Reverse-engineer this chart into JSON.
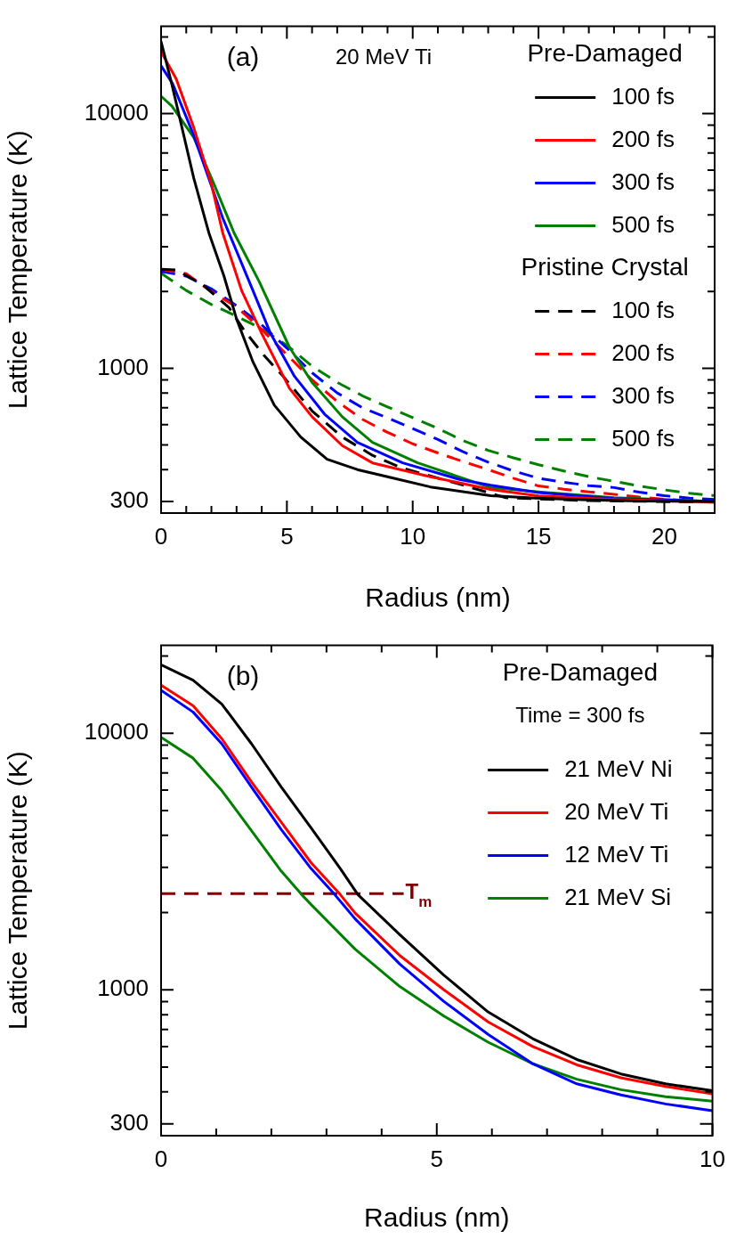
{
  "chart_data": [
    {
      "type": "line",
      "subtitle": "20 MeV Ti",
      "xlabel": "Radius (nm)",
      "ylabel": "Lattice Temperature (K)",
      "legend_title": "Pre-Damaged",
      "legend": "top right",
      "grid": false,
      "log": "y",
      "annotations": [
        "(a)",
        "Pristine Crystal"
      ],
      "xlim": [
        0,
        22
      ],
      "xticks": [
        0,
        {
          "value": 1,
          "label": null
        },
        {
          "value": 2,
          "label": null
        },
        {
          "value": 3,
          "label": null
        },
        {
          "value": 4,
          "label": null
        },
        5,
        {
          "value": 6,
          "label": null
        },
        {
          "value": 7,
          "label": null
        },
        {
          "value": 8,
          "label": null
        },
        {
          "value": 9,
          "label": null
        },
        10,
        {
          "value": 11,
          "label": null
        },
        {
          "value": 12,
          "label": null
        },
        {
          "value": 13,
          "label": null
        },
        {
          "value": 14,
          "label": null
        },
        15,
        {
          "value": 16,
          "label": null
        },
        {
          "value": 17,
          "label": null
        },
        {
          "value": 18,
          "label": null
        },
        {
          "value": 19,
          "label": null
        },
        20,
        {
          "value": 21,
          "label": null
        }
      ],
      "ylim": [
        270,
        22000
      ],
      "yticks": [
        300,
        {
          "value": 400,
          "label": null
        },
        {
          "value": 500,
          "label": null
        },
        {
          "value": 600,
          "label": null
        },
        {
          "value": 700,
          "label": null
        },
        {
          "value": 800,
          "label": null
        },
        {
          "value": 900,
          "label": null
        },
        1000,
        {
          "value": 2000,
          "label": null
        },
        {
          "value": 3000,
          "label": null
        },
        {
          "value": 4000,
          "label": null
        },
        {
          "value": 5000,
          "label": null
        },
        {
          "value": 6000,
          "label": null
        },
        {
          "value": 7000,
          "label": null
        },
        {
          "value": 8000,
          "label": null
        },
        {
          "value": 9000,
          "label": null
        },
        10000,
        {
          "value": 20000,
          "label": null
        }
      ],
      "series": [
        {
          "name": "100 fs",
          "color": "#000000",
          "line_style": "solid",
          "x": [
            0,
            0.43,
            1.3,
            1.9,
            2.5,
            3.0,
            3.65,
            4.5,
            5.55,
            6.6,
            7.8,
            9.0,
            10.7,
            13.1,
            14.9,
            17,
            19,
            22
          ],
          "values": [
            19200,
            13000,
            5570,
            3400,
            2300,
            1560,
            1060,
            716,
            537,
            439,
            400,
            375,
            342,
            316,
            309,
            304,
            301,
            300
          ]
        },
        {
          "name": "200 fs",
          "color": "#ff0000",
          "line_style": "solid",
          "x": [
            0,
            0.6,
            1.3,
            2.0,
            2.45,
            3.2,
            4.0,
            5.1,
            6.0,
            7.2,
            8.4,
            10.7,
            13.1,
            15,
            18,
            22
          ],
          "values": [
            17500,
            13700,
            8800,
            5300,
            3400,
            2020,
            1370,
            835,
            645,
            497,
            425,
            375,
            334,
            315,
            305,
            298
          ]
        },
        {
          "name": "300 fs",
          "color": "#0000ff",
          "line_style": "solid",
          "x": [
            0,
            0.46,
            1.3,
            2.45,
            3.65,
            4.35,
            5.3,
            6.5,
            7.8,
            9.6,
            11.9,
            13.1,
            15,
            18,
            22
          ],
          "values": [
            15400,
            13100,
            8200,
            3890,
            2020,
            1370,
            930,
            660,
            512,
            425,
            365,
            347,
            325,
            308,
            300
          ]
        },
        {
          "name": "500 fs",
          "color": "#008000",
          "line_style": "solid",
          "x": [
            0,
            0.43,
            1.3,
            2.1,
            2.9,
            3.9,
            5.1,
            6.0,
            7.2,
            8.4,
            10.2,
            13.1,
            15,
            18,
            22
          ],
          "values": [
            11700,
            10700,
            8050,
            5300,
            3400,
            2190,
            1210,
            880,
            645,
            512,
            425,
            340,
            327,
            310,
            300
          ]
        },
        {
          "name": "100 fs",
          "color": "#000000",
          "line_style": "dashed",
          "x": [
            0,
            0.6,
            1.65,
            2.1,
            2.7,
            3.3,
            4.1,
            4.85,
            6.0,
            7.2,
            8.4,
            9.6,
            11.9,
            13.7,
            17,
            22
          ],
          "values": [
            2450,
            2430,
            2130,
            1950,
            1730,
            1410,
            1120,
            930,
            680,
            537,
            455,
            405,
            350,
            310,
            302,
            298
          ]
        },
        {
          "name": "200 fs",
          "color": "#ff0000",
          "line_style": "dashed",
          "x": [
            0,
            1,
            2,
            3,
            4,
            5,
            6,
            7,
            8,
            9,
            10,
            11,
            12,
            13,
            14,
            15,
            16,
            17,
            18,
            19,
            20,
            21,
            22
          ],
          "values": [
            2450,
            2350,
            2000,
            1740,
            1420,
            1130,
            900,
            740,
            630,
            560,
            505,
            465,
            430,
            400,
            370,
            345,
            335,
            327,
            320,
            312,
            306,
            302,
            298
          ]
        },
        {
          "name": "300 fs",
          "color": "#0000ff",
          "line_style": "dashed",
          "x": [
            0,
            1,
            2,
            3,
            4,
            5,
            6,
            7,
            8,
            9,
            10,
            11,
            12,
            13,
            14,
            15,
            16,
            17,
            18,
            19,
            20,
            21,
            22
          ],
          "values": [
            2400,
            2300,
            2050,
            1760,
            1480,
            1200,
            960,
            800,
            700,
            638,
            580,
            525,
            470,
            428,
            395,
            370,
            357,
            346,
            340,
            326,
            316,
            309,
            305
          ]
        },
        {
          "name": "500 fs",
          "color": "#008000",
          "line_style": "dashed",
          "x": [
            0,
            1,
            2,
            3,
            4,
            5,
            6,
            7,
            8,
            9,
            10,
            11,
            12,
            13,
            14,
            15,
            16,
            17,
            18,
            19,
            20,
            21,
            22
          ],
          "values": [
            2360,
            2020,
            1780,
            1600,
            1430,
            1230,
            1020,
            880,
            780,
            705,
            640,
            580,
            520,
            476,
            445,
            418,
            395,
            375,
            360,
            345,
            333,
            323,
            316
          ]
        }
      ]
    },
    {
      "type": "line",
      "xlabel": "Radius (nm)",
      "ylabel": "Lattice Temperature (K)",
      "legend_title": "Pre-Damaged",
      "legend": "top right",
      "grid": false,
      "log": "y",
      "annotations": [
        "(b)",
        "Time = 300 fs",
        {
          "text": "T$_{m}$",
          "x": 4.4,
          "y": 2370
        }
      ],
      "xlim": [
        0,
        10
      ],
      "xticks": [
        0,
        {
          "value": 1,
          "label": null
        },
        {
          "value": 2,
          "label": null
        },
        {
          "value": 3,
          "label": null
        },
        {
          "value": 4,
          "label": null
        },
        5,
        {
          "value": 6,
          "label": null
        },
        {
          "value": 7,
          "label": null
        },
        {
          "value": 8,
          "label": null
        },
        {
          "value": 9,
          "label": null
        },
        10
      ],
      "ylim": [
        270,
        22000
      ],
      "yticks": [
        300,
        {
          "value": 400,
          "label": null
        },
        {
          "value": 500,
          "label": null
        },
        {
          "value": 600,
          "label": null
        },
        {
          "value": 700,
          "label": null
        },
        {
          "value": 800,
          "label": null
        },
        {
          "value": 900,
          "label": null
        },
        1000,
        {
          "value": 2000,
          "label": null
        },
        {
          "value": 3000,
          "label": null
        },
        {
          "value": 4000,
          "label": null
        },
        {
          "value": 5000,
          "label": null
        },
        {
          "value": 6000,
          "label": null
        },
        {
          "value": 7000,
          "label": null
        },
        {
          "value": 8000,
          "label": null
        },
        {
          "value": 9000,
          "label": null
        },
        10000,
        {
          "value": 20000,
          "label": null
        }
      ],
      "series": [
        {
          "name": "21 MeV Ni",
          "color": "#000000",
          "line_style": "solid",
          "x": [
            0,
            0.58,
            1.1,
            1.64,
            2.18,
            2.72,
            3.25,
            3.57,
            4.33,
            5.13,
            5.93,
            6.74,
            7.54,
            8.34,
            9.15,
            10
          ],
          "values": [
            18500,
            16100,
            13000,
            9100,
            6170,
            4280,
            2970,
            2350,
            1640,
            1140,
            820,
            645,
            535,
            470,
            430,
            404
          ]
        },
        {
          "name": "20 MeV Ti",
          "color": "#ff0000",
          "line_style": "solid",
          "x": [
            0,
            0.58,
            1.1,
            1.64,
            2.18,
            2.72,
            3.25,
            3.52,
            4.33,
            5.13,
            5.93,
            6.74,
            7.54,
            8.34,
            9.15,
            10
          ],
          "values": [
            15400,
            12800,
            9530,
            6460,
            4500,
            3130,
            2350,
            1990,
            1360,
            1000,
            750,
            601,
            510,
            454,
            420,
            393
          ]
        },
        {
          "name": "12 MeV Ti",
          "color": "#0000ff",
          "line_style": "solid",
          "x": [
            0,
            0.58,
            1.1,
            1.64,
            2.18,
            2.72,
            3.15,
            3.52,
            4.33,
            5.13,
            5.93,
            6.74,
            7.54,
            8.34,
            9.15,
            10
          ],
          "values": [
            14700,
            12100,
            9100,
            6170,
            4210,
            2970,
            2350,
            1890,
            1260,
            900,
            670,
            515,
            430,
            389,
            359,
            338
          ]
        },
        {
          "name": "21 MeV Si",
          "color": "#008000",
          "line_style": "solid",
          "x": [
            0,
            0.58,
            1.1,
            1.64,
            2.18,
            2.55,
            2.72,
            3.52,
            4.33,
            5.13,
            5.93,
            6.74,
            7.54,
            8.34,
            9.15,
            10
          ],
          "values": [
            9640,
            8000,
            5980,
            4170,
            2900,
            2350,
            2150,
            1440,
            1030,
            790,
            625,
            515,
            448,
            408,
            383,
            368
          ]
        },
        {
          "color": "#800000",
          "line_style": "dashed",
          "x": [
            0,
            4.4
          ],
          "values": [
            2370,
            2370
          ]
        }
      ]
    }
  ]
}
